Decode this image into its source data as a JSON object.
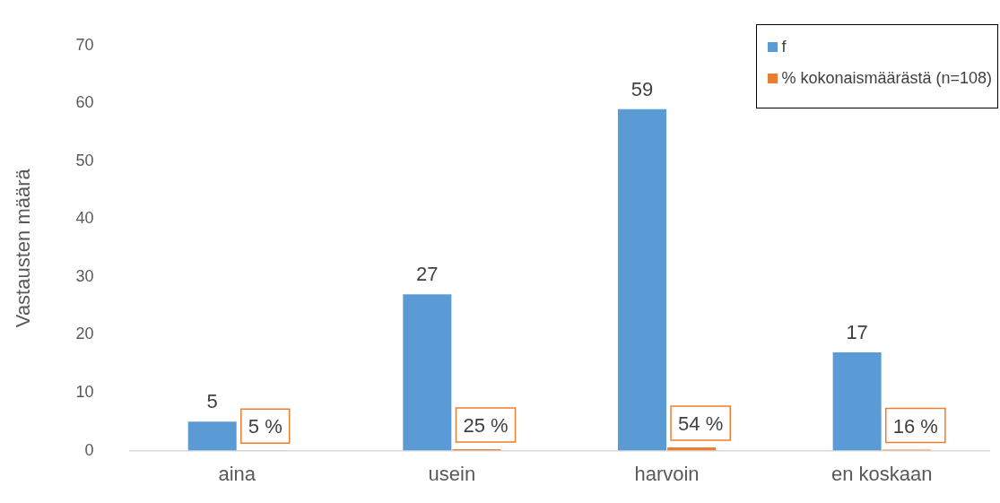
{
  "chart_data": {
    "type": "bar",
    "ylabel": "Vastausten määrä",
    "categories": [
      "aina",
      "usein",
      "harvoin",
      "en koskaan"
    ],
    "series": [
      {
        "name": "f",
        "color": "#5b9bd5",
        "values": [
          5,
          27,
          59,
          17
        ],
        "value_labels": [
          "5",
          "27",
          "59",
          "17"
        ]
      },
      {
        "name": "% kokonaismäärästä (n=108)",
        "color": "#ed7d31",
        "values": [
          0.05,
          0.25,
          0.54,
          0.16
        ],
        "value_labels": [
          "5 %",
          "25 %",
          "54 %",
          "16 %"
        ]
      }
    ],
    "ylim": [
      0,
      70
    ],
    "yticks": [
      0,
      10,
      20,
      30,
      40,
      50,
      60,
      70
    ],
    "grid": false,
    "legend": "top right"
  }
}
